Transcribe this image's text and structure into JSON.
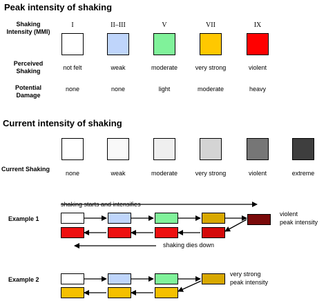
{
  "section1": {
    "title": "Peak intensity of shaking",
    "mmi_label": "Shaking Intensity (MMI)",
    "perceived_label": "Perceived Shaking",
    "damage_label": "Potential Damage",
    "columns": [
      {
        "roman": "I",
        "color": "#ffffff",
        "perceived": "not felt",
        "damage": "none"
      },
      {
        "roman": "II–III",
        "color": "#bfd5fb",
        "perceived": "weak",
        "damage": "none"
      },
      {
        "roman": "V",
        "color": "#80f29a",
        "perceived": "moderate",
        "damage": "light"
      },
      {
        "roman": "VII",
        "color": "#ffc800",
        "perceived": "very strong",
        "damage": "moderate"
      },
      {
        "roman": "IX",
        "color": "#ff0000",
        "perceived": "violent",
        "damage": "heavy"
      }
    ]
  },
  "section2": {
    "title": "Current intensity of shaking",
    "current_label": "Current Shaking",
    "columns": [
      {
        "color": "#ffffff",
        "label": "none"
      },
      {
        "color": "#f9f9f9",
        "label": "weak"
      },
      {
        "color": "#efefef",
        "label": "moderate"
      },
      {
        "color": "#d4d4d4",
        "label": "very strong"
      },
      {
        "color": "#767676",
        "label": "violent"
      },
      {
        "color": "#3e3e3e",
        "label": "extreme"
      }
    ]
  },
  "example1": {
    "label": "Example 1",
    "note_top": "shaking starts and intensifies",
    "note_bottom": "shaking dies down",
    "peak_label": "violent",
    "peak_sub": "peak intensity",
    "top_row": [
      "#ffffff",
      "#bfd5fb",
      "#80f29a",
      "#d8a800"
    ],
    "peak_color": "#7a0a0a",
    "bottom_row": [
      "#ee1010",
      "#ee1010",
      "#ee1010",
      "#d40a0a"
    ]
  },
  "example2": {
    "label": "Example 2",
    "peak_label": "very strong",
    "peak_sub": "peak intensity",
    "top_row": [
      "#ffffff",
      "#bfd5fb",
      "#80f29a"
    ],
    "peak_color": "#d8a800",
    "bottom_row": [
      "#f5c000",
      "#f5c000",
      "#f5c000"
    ]
  }
}
